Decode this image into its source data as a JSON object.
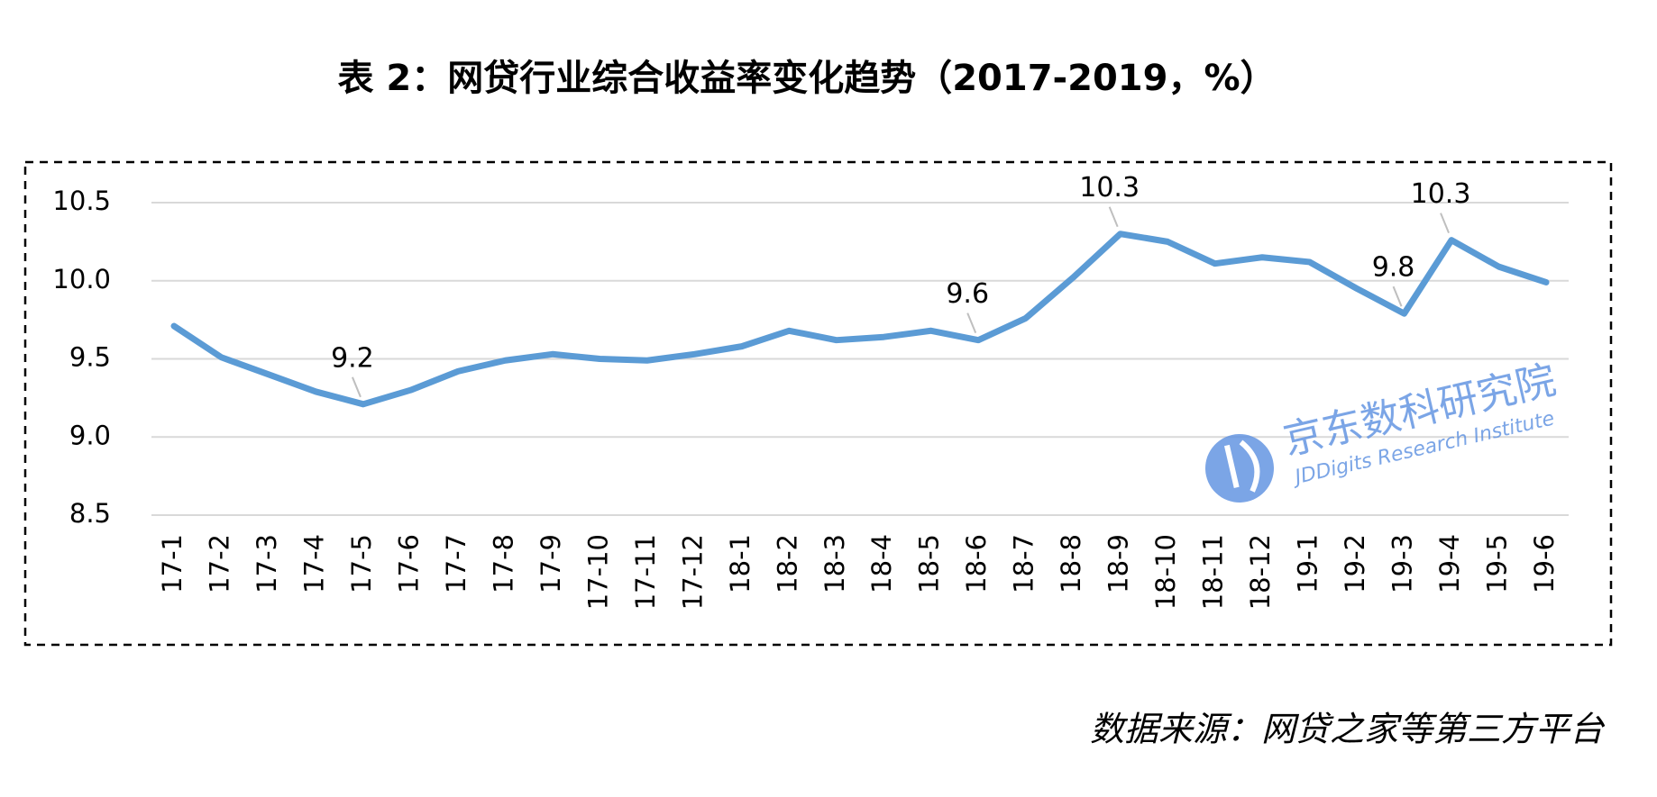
{
  "chart_data": {
    "type": "line",
    "title": "表 2：网贷行业综合收益率变化趋势（2017-2019，%）",
    "source": "数据来源：网贷之家等第三方平台",
    "watermark": {
      "name": "京东数科研究院",
      "subtitle": "JDDigits Research Institute"
    },
    "categories": [
      "17-1",
      "17-2",
      "17-3",
      "17-4",
      "17-5",
      "17-6",
      "17-7",
      "17-8",
      "17-9",
      "17-10",
      "17-11",
      "17-12",
      "18-1",
      "18-2",
      "18-3",
      "18-4",
      "18-5",
      "18-6",
      "18-7",
      "18-8",
      "18-9",
      "18-10",
      "18-11",
      "18-12",
      "19-1",
      "19-2",
      "19-3",
      "19-4",
      "19-5",
      "19-6"
    ],
    "series": [
      {
        "color": "#5b9bd5",
        "values": [
          9.71,
          9.51,
          9.4,
          9.29,
          9.21,
          9.3,
          9.42,
          9.49,
          9.53,
          9.5,
          9.49,
          9.53,
          9.58,
          9.68,
          9.62,
          9.64,
          9.68,
          9.62,
          9.76,
          10.02,
          10.3,
          10.25,
          10.11,
          10.15,
          10.12,
          9.95,
          9.79,
          10.26,
          10.09,
          9.99
        ],
        "value_labels": [
          null,
          null,
          null,
          null,
          "9.2",
          null,
          null,
          null,
          null,
          null,
          null,
          null,
          null,
          null,
          null,
          null,
          null,
          "9.6",
          null,
          null,
          "10.3",
          null,
          null,
          null,
          null,
          null,
          "9.8",
          "10.3",
          null,
          null
        ]
      }
    ],
    "ylim": [
      8.5,
      10.5
    ],
    "yticks": [
      8.5,
      {
        "value": 9.0,
        "label": "9.0"
      },
      9.5,
      {
        "value": 10.0,
        "label": "10.0"
      },
      10.5
    ],
    "grid": true
  }
}
